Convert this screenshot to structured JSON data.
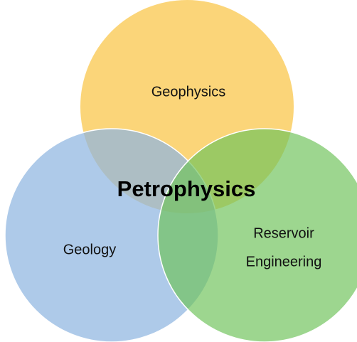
{
  "center_label": "Petrophysics",
  "circles": [
    {
      "lines": [
        "Geophysics"
      ]
    },
    {
      "lines": [
        "Geology"
      ]
    },
    {
      "lines": [
        "Reservoir",
        "Engineering"
      ]
    }
  ]
}
